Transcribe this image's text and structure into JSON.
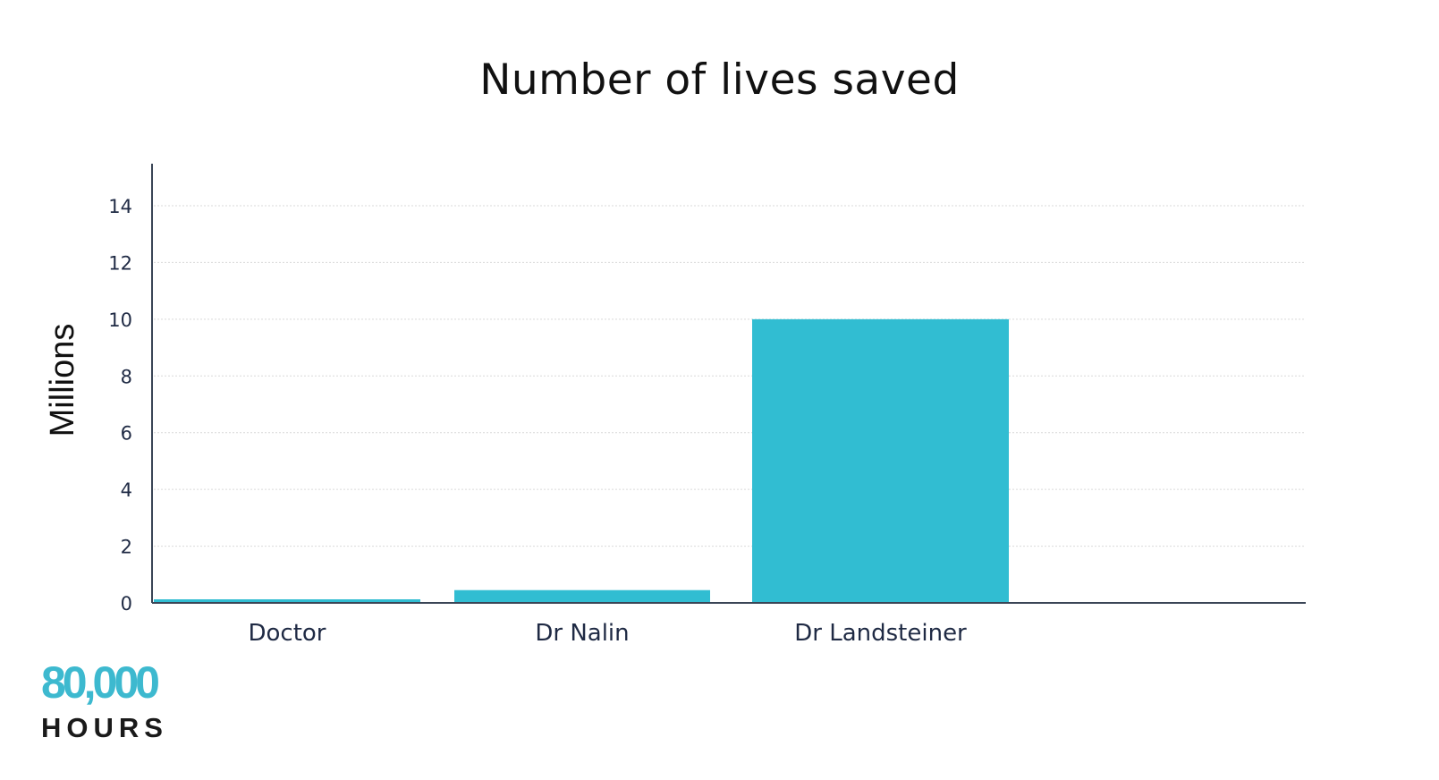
{
  "chart_data": {
    "type": "bar",
    "title": "Number of lives saved",
    "xlabel": "",
    "ylabel": "Millions",
    "categories": [
      "Doctor",
      "Dr Nalin",
      "Dr Landsteiner"
    ],
    "values": [
      0.05,
      0.45,
      10
    ],
    "yticks": [
      "0",
      "2",
      "4",
      "6",
      "8",
      "10",
      "12",
      "14"
    ],
    "ylim": [
      0,
      14.5
    ],
    "grid": true,
    "legend": "none",
    "bar_color": "#31bdd2",
    "axis_color": "#3a4556",
    "grid_color": "#d9d9d9"
  },
  "branding": {
    "logo_number": "80,000",
    "logo_word": "HOURS",
    "logo_color": "#3db9cf"
  }
}
